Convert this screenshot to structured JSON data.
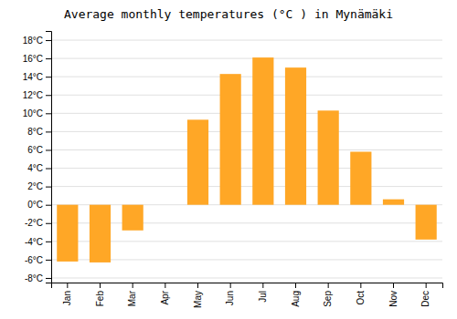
{
  "chart_data": {
    "type": "bar",
    "title": "Average monthly temperatures (°C ) in Mynämäki",
    "categories": [
      "Jan",
      "Feb",
      "Mar",
      "Apr",
      "May",
      "Jun",
      "Jul",
      "Aug",
      "Sep",
      "Oct",
      "Nov",
      "Dec"
    ],
    "values": [
      -6.2,
      -6.3,
      -2.8,
      0.0,
      9.3,
      14.3,
      16.1,
      15.0,
      10.3,
      5.8,
      0.6,
      -3.8
    ],
    "color": "#FFA726",
    "ylim": [
      -8.5,
      19
    ],
    "yticks": [
      {
        "value": -8,
        "label": "-8°C"
      },
      {
        "value": -6,
        "label": "-6°C"
      },
      {
        "value": -4,
        "label": "-4°C"
      },
      {
        "value": -2,
        "label": "-2°C"
      },
      {
        "value": 0,
        "label": "0°C"
      },
      {
        "value": 2,
        "label": "2°C"
      },
      {
        "value": 4,
        "label": "4°C"
      },
      {
        "value": 6,
        "label": "6°C"
      },
      {
        "value": 8,
        "label": "8°C"
      },
      {
        "value": 10,
        "label": "10°C"
      },
      {
        "value": 12,
        "label": "12°C"
      },
      {
        "value": 14,
        "label": "14°C"
      },
      {
        "value": 16,
        "label": "16°C"
      },
      {
        "value": 18,
        "label": "18°C"
      }
    ],
    "grid": true
  }
}
